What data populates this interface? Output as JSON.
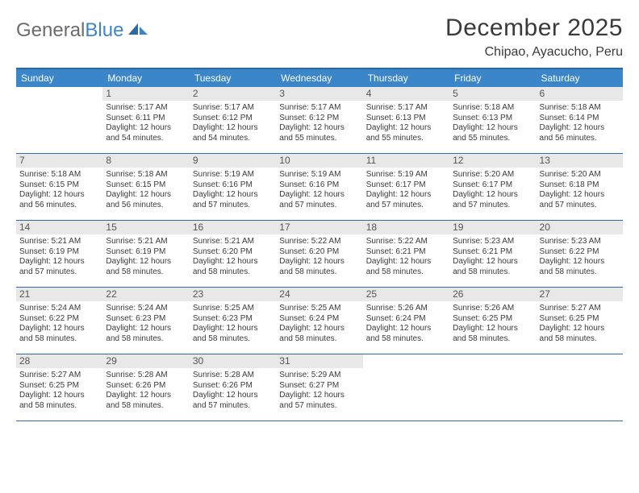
{
  "logo": {
    "text1": "General",
    "text2": "Blue"
  },
  "title": "December 2025",
  "location": "Chipao, Ayacucho, Peru",
  "colors": {
    "header_bg": "#3a86c8",
    "border": "#2d6aa3",
    "daynum_bg": "#e8e8e8",
    "text": "#3a3a3a",
    "logo_gray": "#6b6b6b"
  },
  "dow": [
    "Sunday",
    "Monday",
    "Tuesday",
    "Wednesday",
    "Thursday",
    "Friday",
    "Saturday"
  ],
  "weeks": [
    [
      {
        "n": "",
        "lines": []
      },
      {
        "n": "1",
        "lines": [
          "Sunrise: 5:17 AM",
          "Sunset: 6:11 PM",
          "Daylight: 12 hours",
          "and 54 minutes."
        ]
      },
      {
        "n": "2",
        "lines": [
          "Sunrise: 5:17 AM",
          "Sunset: 6:12 PM",
          "Daylight: 12 hours",
          "and 54 minutes."
        ]
      },
      {
        "n": "3",
        "lines": [
          "Sunrise: 5:17 AM",
          "Sunset: 6:12 PM",
          "Daylight: 12 hours",
          "and 55 minutes."
        ]
      },
      {
        "n": "4",
        "lines": [
          "Sunrise: 5:17 AM",
          "Sunset: 6:13 PM",
          "Daylight: 12 hours",
          "and 55 minutes."
        ]
      },
      {
        "n": "5",
        "lines": [
          "Sunrise: 5:18 AM",
          "Sunset: 6:13 PM",
          "Daylight: 12 hours",
          "and 55 minutes."
        ]
      },
      {
        "n": "6",
        "lines": [
          "Sunrise: 5:18 AM",
          "Sunset: 6:14 PM",
          "Daylight: 12 hours",
          "and 56 minutes."
        ]
      }
    ],
    [
      {
        "n": "7",
        "lines": [
          "Sunrise: 5:18 AM",
          "Sunset: 6:15 PM",
          "Daylight: 12 hours",
          "and 56 minutes."
        ]
      },
      {
        "n": "8",
        "lines": [
          "Sunrise: 5:18 AM",
          "Sunset: 6:15 PM",
          "Daylight: 12 hours",
          "and 56 minutes."
        ]
      },
      {
        "n": "9",
        "lines": [
          "Sunrise: 5:19 AM",
          "Sunset: 6:16 PM",
          "Daylight: 12 hours",
          "and 57 minutes."
        ]
      },
      {
        "n": "10",
        "lines": [
          "Sunrise: 5:19 AM",
          "Sunset: 6:16 PM",
          "Daylight: 12 hours",
          "and 57 minutes."
        ]
      },
      {
        "n": "11",
        "lines": [
          "Sunrise: 5:19 AM",
          "Sunset: 6:17 PM",
          "Daylight: 12 hours",
          "and 57 minutes."
        ]
      },
      {
        "n": "12",
        "lines": [
          "Sunrise: 5:20 AM",
          "Sunset: 6:17 PM",
          "Daylight: 12 hours",
          "and 57 minutes."
        ]
      },
      {
        "n": "13",
        "lines": [
          "Sunrise: 5:20 AM",
          "Sunset: 6:18 PM",
          "Daylight: 12 hours",
          "and 57 minutes."
        ]
      }
    ],
    [
      {
        "n": "14",
        "lines": [
          "Sunrise: 5:21 AM",
          "Sunset: 6:19 PM",
          "Daylight: 12 hours",
          "and 57 minutes."
        ]
      },
      {
        "n": "15",
        "lines": [
          "Sunrise: 5:21 AM",
          "Sunset: 6:19 PM",
          "Daylight: 12 hours",
          "and 58 minutes."
        ]
      },
      {
        "n": "16",
        "lines": [
          "Sunrise: 5:21 AM",
          "Sunset: 6:20 PM",
          "Daylight: 12 hours",
          "and 58 minutes."
        ]
      },
      {
        "n": "17",
        "lines": [
          "Sunrise: 5:22 AM",
          "Sunset: 6:20 PM",
          "Daylight: 12 hours",
          "and 58 minutes."
        ]
      },
      {
        "n": "18",
        "lines": [
          "Sunrise: 5:22 AM",
          "Sunset: 6:21 PM",
          "Daylight: 12 hours",
          "and 58 minutes."
        ]
      },
      {
        "n": "19",
        "lines": [
          "Sunrise: 5:23 AM",
          "Sunset: 6:21 PM",
          "Daylight: 12 hours",
          "and 58 minutes."
        ]
      },
      {
        "n": "20",
        "lines": [
          "Sunrise: 5:23 AM",
          "Sunset: 6:22 PM",
          "Daylight: 12 hours",
          "and 58 minutes."
        ]
      }
    ],
    [
      {
        "n": "21",
        "lines": [
          "Sunrise: 5:24 AM",
          "Sunset: 6:22 PM",
          "Daylight: 12 hours",
          "and 58 minutes."
        ]
      },
      {
        "n": "22",
        "lines": [
          "Sunrise: 5:24 AM",
          "Sunset: 6:23 PM",
          "Daylight: 12 hours",
          "and 58 minutes."
        ]
      },
      {
        "n": "23",
        "lines": [
          "Sunrise: 5:25 AM",
          "Sunset: 6:23 PM",
          "Daylight: 12 hours",
          "and 58 minutes."
        ]
      },
      {
        "n": "24",
        "lines": [
          "Sunrise: 5:25 AM",
          "Sunset: 6:24 PM",
          "Daylight: 12 hours",
          "and 58 minutes."
        ]
      },
      {
        "n": "25",
        "lines": [
          "Sunrise: 5:26 AM",
          "Sunset: 6:24 PM",
          "Daylight: 12 hours",
          "and 58 minutes."
        ]
      },
      {
        "n": "26",
        "lines": [
          "Sunrise: 5:26 AM",
          "Sunset: 6:25 PM",
          "Daylight: 12 hours",
          "and 58 minutes."
        ]
      },
      {
        "n": "27",
        "lines": [
          "Sunrise: 5:27 AM",
          "Sunset: 6:25 PM",
          "Daylight: 12 hours",
          "and 58 minutes."
        ]
      }
    ],
    [
      {
        "n": "28",
        "lines": [
          "Sunrise: 5:27 AM",
          "Sunset: 6:25 PM",
          "Daylight: 12 hours",
          "and 58 minutes."
        ]
      },
      {
        "n": "29",
        "lines": [
          "Sunrise: 5:28 AM",
          "Sunset: 6:26 PM",
          "Daylight: 12 hours",
          "and 58 minutes."
        ]
      },
      {
        "n": "30",
        "lines": [
          "Sunrise: 5:28 AM",
          "Sunset: 6:26 PM",
          "Daylight: 12 hours",
          "and 57 minutes."
        ]
      },
      {
        "n": "31",
        "lines": [
          "Sunrise: 5:29 AM",
          "Sunset: 6:27 PM",
          "Daylight: 12 hours",
          "and 57 minutes."
        ]
      },
      {
        "n": "",
        "lines": []
      },
      {
        "n": "",
        "lines": []
      },
      {
        "n": "",
        "lines": []
      }
    ]
  ]
}
